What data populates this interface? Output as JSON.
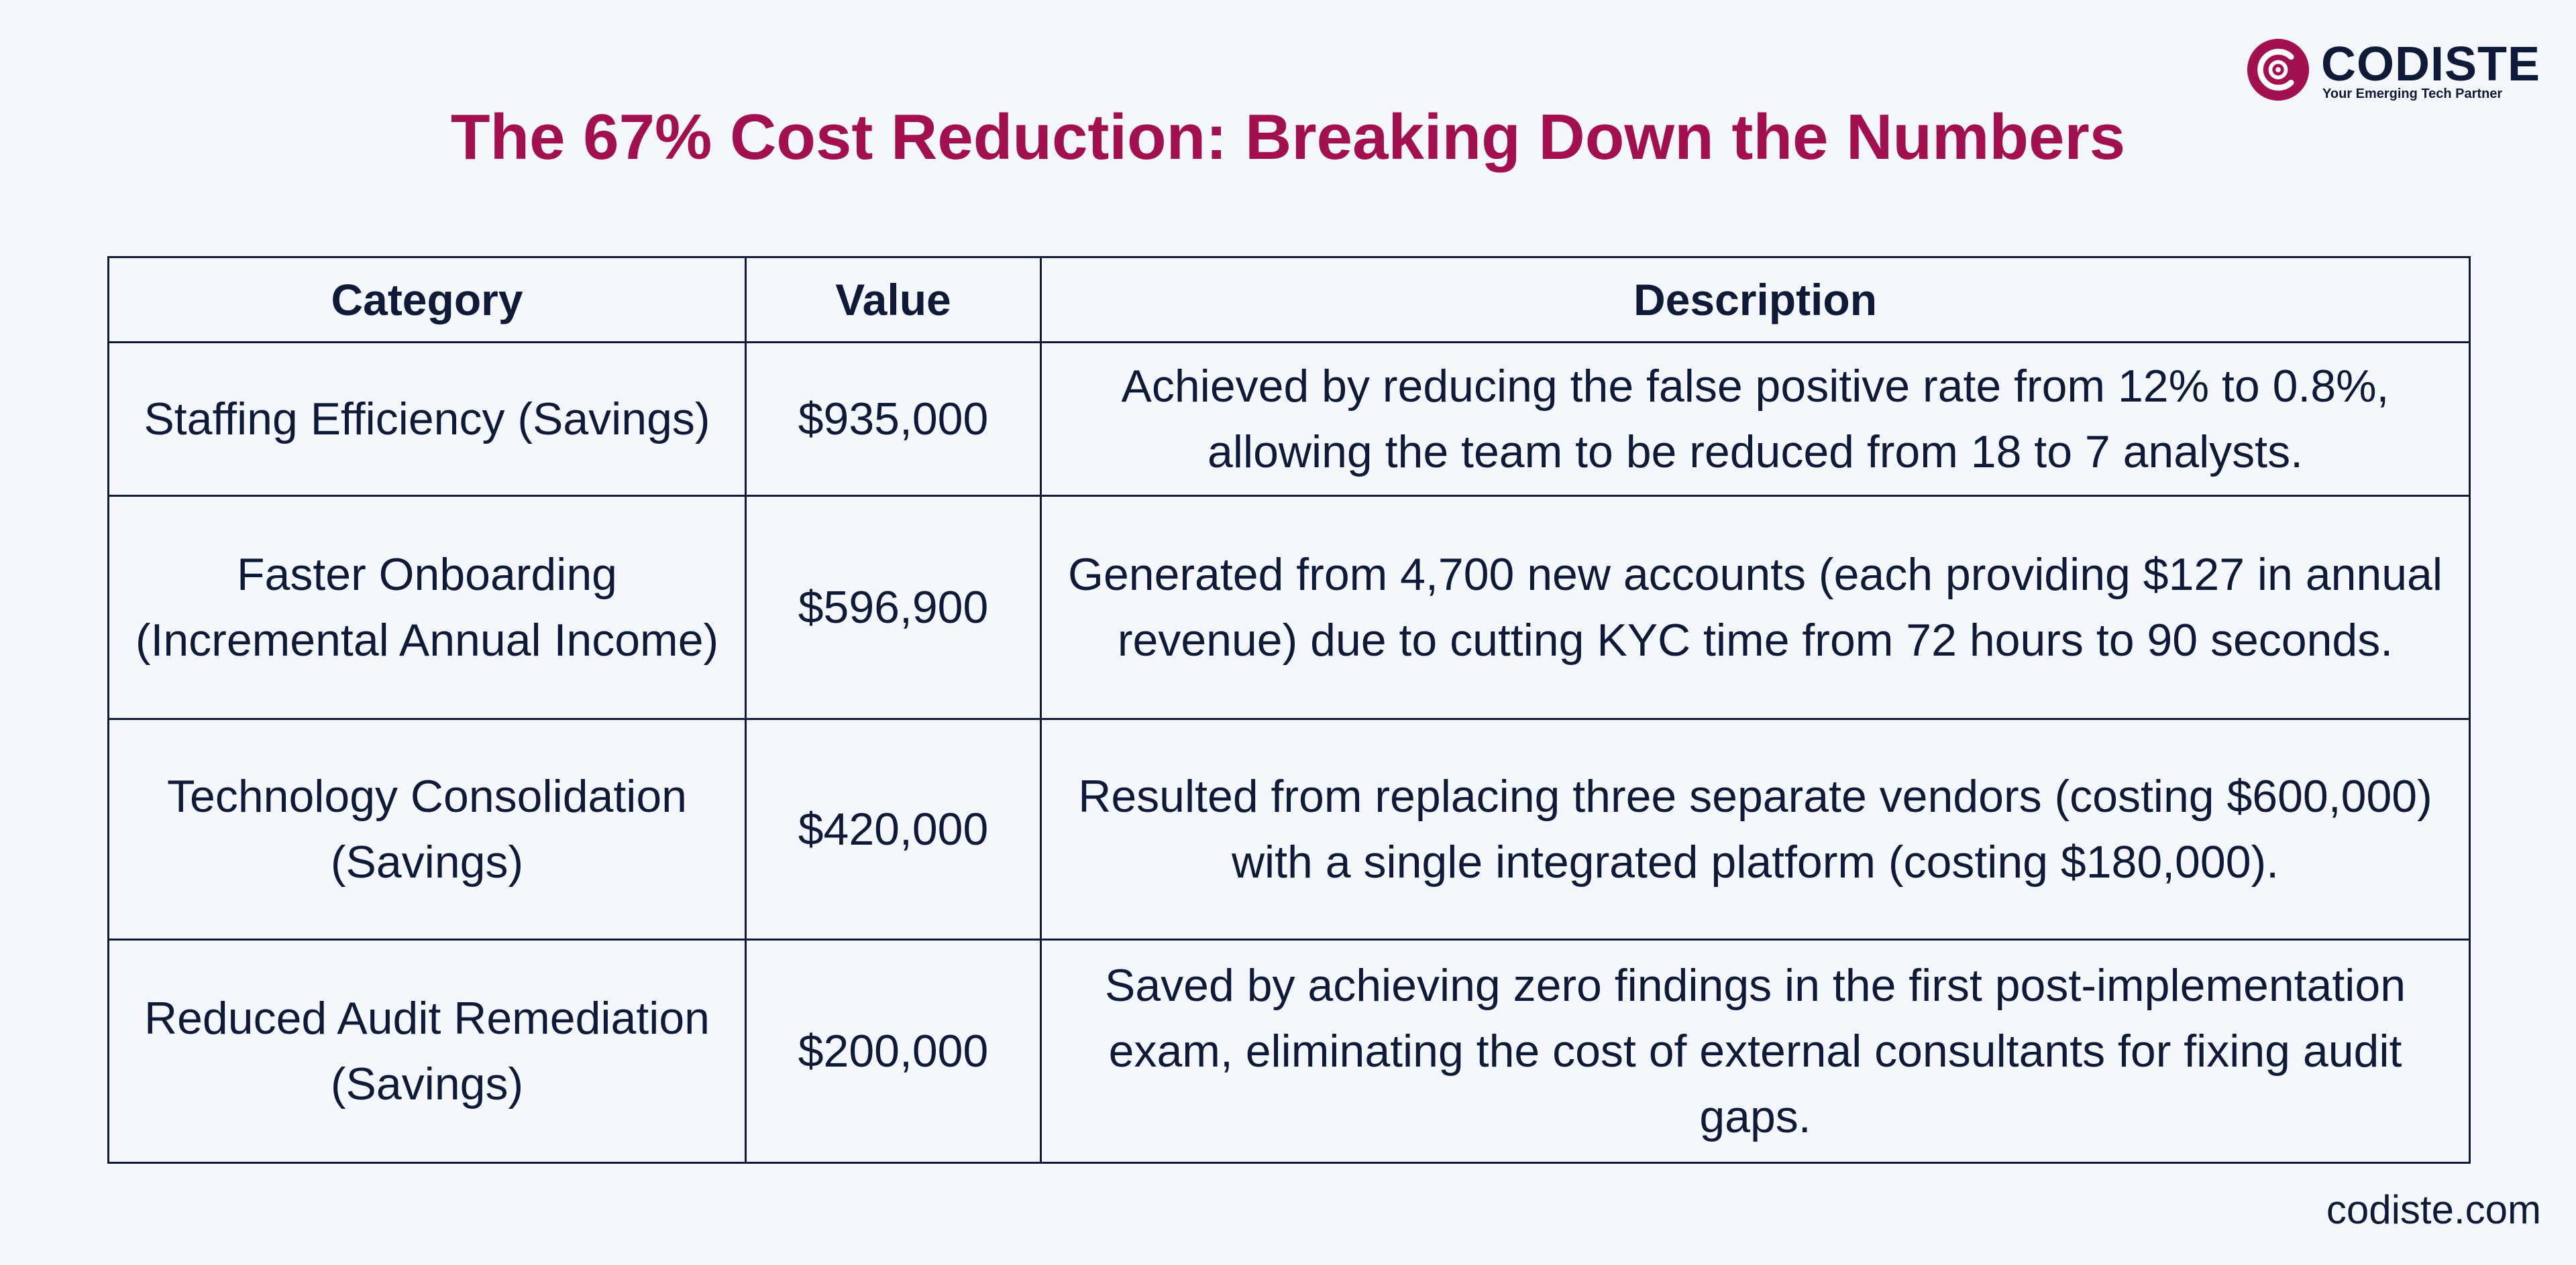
{
  "brand": {
    "name": "CODISTE",
    "tagline": "Your Emerging Tech Partner",
    "accent_color": "#a3104f",
    "text_color": "#0f1a38",
    "background_color": "#f4f8fc",
    "logo_icon": "codiste-logo-icon"
  },
  "title": "The 67% Cost Reduction: Breaking Down the Numbers",
  "table": {
    "headers": [
      "Category",
      "Value",
      "Description"
    ],
    "rows": [
      {
        "category": "Staffing Efficiency (Savings)",
        "value": "$935,000",
        "description": "Achieved by reducing the false positive rate from 12% to 0.8%, allowing the team to be reduced from 18 to 7 analysts."
      },
      {
        "category": "Faster Onboarding (Incremental Annual Income)",
        "value": "$596,900",
        "description": "Generated from 4,700 new accounts (each providing $127 in annual revenue) due to cutting KYC time from 72 hours to 90 seconds."
      },
      {
        "category": "Technology Consolidation (Savings)",
        "value": "$420,000",
        "description": "Resulted from replacing three separate vendors (costing $600,000) with a single integrated platform (costing $180,000)."
      },
      {
        "category": "Reduced Audit Remediation (Savings)",
        "value": "$200,000",
        "description": "Saved by achieving zero findings in the first post-implementation exam, eliminating the cost of external consultants for fixing audit gaps."
      }
    ]
  },
  "footer": "codiste.com"
}
